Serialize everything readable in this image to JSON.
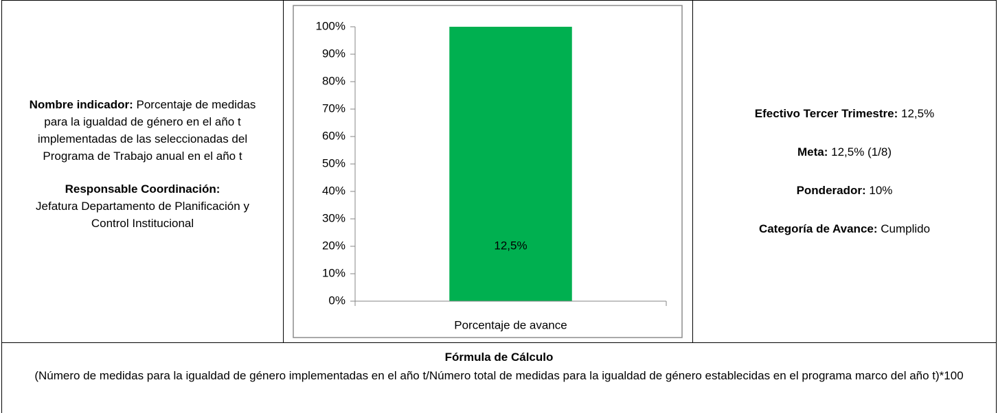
{
  "indicator": {
    "name_label": "Nombre indicador:",
    "name": "Porcentaje de medidas para la igualdad de género en el año t implementadas de las seleccionadas del Programa de Trabajo anual en el año t",
    "responsible_label": "Responsable Coordinación:",
    "responsible": "Jefatura Departamento de Planificación y Control Institucional"
  },
  "chart_data": {
    "type": "bar",
    "categories": [
      "Porcentaje de avance"
    ],
    "values": [
      100
    ],
    "color": "#00b050",
    "annotation": "12,5%",
    "ylim": [
      0,
      100
    ],
    "yticks": [
      {
        "value": 0,
        "label": "0%"
      },
      {
        "value": 10,
        "label": "10%"
      },
      {
        "value": 20,
        "label": "20%"
      },
      {
        "value": 30,
        "label": "30%"
      },
      {
        "value": 40,
        "label": "40%"
      },
      {
        "value": 50,
        "label": "50%"
      },
      {
        "value": 60,
        "label": "60%"
      },
      {
        "value": 70,
        "label": "70%"
      },
      {
        "value": 80,
        "label": "80%"
      },
      {
        "value": 90,
        "label": "90%"
      },
      {
        "value": 100,
        "label": "100%"
      }
    ]
  },
  "summary": [
    {
      "label": "Efectivo Tercer Trimestre:",
      "value": "12,5%"
    },
    {
      "label": "Meta:",
      "value": "12,5% (1/8)"
    },
    {
      "label": "Ponderador:",
      "value": "10%"
    },
    {
      "label": "Categoría de Avance:",
      "value": "Cumplido"
    }
  ],
  "formula": {
    "title": "Fórmula de Cálculo",
    "text": "(Número de medidas para la igualdad de género implementadas en el año t/Número total de medidas para la igualdad de género establecidas en el programa marco del año t)*100"
  }
}
